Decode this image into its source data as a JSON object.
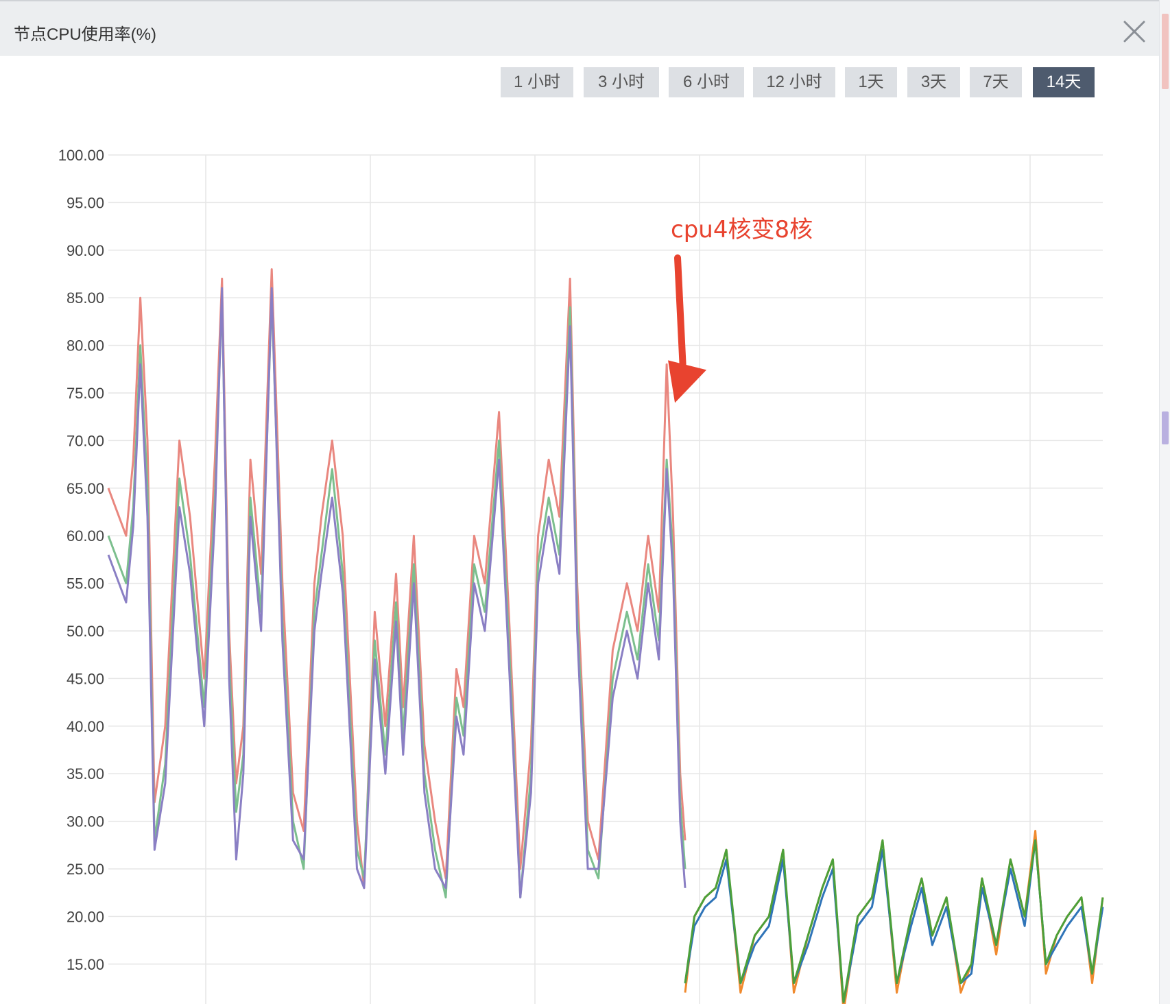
{
  "window": {
    "title": "节点CPU使用率(%)",
    "close_icon": "close-icon"
  },
  "time_ranges": [
    {
      "label": "1 小时",
      "active": false
    },
    {
      "label": "3 小时",
      "active": false
    },
    {
      "label": "6 小时",
      "active": false
    },
    {
      "label": "12 小时",
      "active": false
    },
    {
      "label": "1天",
      "active": false
    },
    {
      "label": "3天",
      "active": false
    },
    {
      "label": "7天",
      "active": false
    },
    {
      "label": "14天",
      "active": true
    }
  ],
  "colors": {
    "active_button": "#4e5b6e",
    "inactive_button": "#dde0e4",
    "annotation": "#e8432f",
    "grid": "#e6e6e6"
  },
  "chart_data": {
    "type": "line",
    "title": "节点CPU使用率(%)",
    "xlabel": "",
    "ylabel": "",
    "ylim": [
      12,
      100
    ],
    "xlim": [
      0,
      14
    ],
    "x_unit": "days",
    "y_ticks": [
      "100.00",
      "95.00",
      "90.00",
      "85.00",
      "80.00",
      "75.00",
      "70.00",
      "65.00",
      "60.00",
      "55.00",
      "50.00",
      "45.00",
      "40.00",
      "35.00",
      "30.00",
      "25.00",
      "20.00",
      "15.00"
    ],
    "grid": true,
    "annotation": {
      "text": "cpu4核变8核",
      "x": 7.86,
      "y": 78
    },
    "series": [
      {
        "color": "#e9877f",
        "x": [
          0.0,
          0.25,
          0.35,
          0.45,
          0.55,
          0.65,
          0.8,
          1.0,
          1.15,
          1.35,
          1.5,
          1.6,
          1.7,
          1.8,
          1.9,
          2.0,
          2.15,
          2.3,
          2.45,
          2.6,
          2.75,
          2.9,
          3.0,
          3.15,
          3.3,
          3.5,
          3.6,
          3.75,
          3.9,
          4.05,
          4.15,
          4.3,
          4.45,
          4.6,
          4.75,
          4.9,
          5.0,
          5.15,
          5.3,
          5.5,
          5.65,
          5.8,
          5.95,
          6.05,
          6.2,
          6.35,
          6.5,
          6.6,
          6.75,
          6.9,
          7.1,
          7.3,
          7.45,
          7.6,
          7.75,
          7.86,
          7.95,
          8.05,
          8.12
        ],
        "y": [
          65,
          60,
          68,
          85,
          70,
          32,
          40,
          70,
          62,
          45,
          68,
          87,
          50,
          34,
          40,
          68,
          56,
          88,
          55,
          33,
          29,
          55,
          62,
          70,
          60,
          30,
          23,
          52,
          40,
          56,
          42,
          60,
          38,
          30,
          24,
          46,
          42,
          60,
          55,
          73,
          50,
          25,
          38,
          60,
          68,
          62,
          87,
          55,
          30,
          26,
          48,
          55,
          50,
          60,
          52,
          78,
          62,
          35,
          28
        ]
      },
      {
        "color": "#7cbf8e",
        "x": [
          0.0,
          0.25,
          0.35,
          0.45,
          0.55,
          0.65,
          0.8,
          1.0,
          1.15,
          1.35,
          1.5,
          1.6,
          1.7,
          1.8,
          1.9,
          2.0,
          2.15,
          2.3,
          2.45,
          2.6,
          2.75,
          2.9,
          3.0,
          3.15,
          3.3,
          3.5,
          3.6,
          3.75,
          3.9,
          4.05,
          4.15,
          4.3,
          4.45,
          4.6,
          4.75,
          4.9,
          5.0,
          5.15,
          5.3,
          5.5,
          5.65,
          5.8,
          5.95,
          6.05,
          6.2,
          6.35,
          6.5,
          6.6,
          6.75,
          6.9,
          7.1,
          7.3,
          7.45,
          7.6,
          7.75,
          7.86,
          7.95,
          8.05,
          8.12
        ],
        "y": [
          60,
          55,
          63,
          80,
          65,
          28,
          36,
          66,
          58,
          42,
          64,
          85,
          47,
          31,
          37,
          64,
          52,
          85,
          51,
          30,
          25,
          52,
          58,
          67,
          56,
          27,
          24,
          49,
          37,
          53,
          39,
          57,
          35,
          27,
          22,
          43,
          39,
          57,
          52,
          70,
          47,
          22,
          35,
          57,
          64,
          58,
          84,
          52,
          27,
          24,
          45,
          52,
          47,
          57,
          49,
          68,
          58,
          32,
          25
        ]
      },
      {
        "color": "#8a7fc4",
        "x": [
          0.0,
          0.25,
          0.35,
          0.45,
          0.55,
          0.65,
          0.8,
          1.0,
          1.15,
          1.35,
          1.5,
          1.6,
          1.7,
          1.8,
          1.9,
          2.0,
          2.15,
          2.3,
          2.45,
          2.6,
          2.75,
          2.9,
          3.0,
          3.15,
          3.3,
          3.5,
          3.6,
          3.75,
          3.9,
          4.05,
          4.15,
          4.3,
          4.45,
          4.6,
          4.75,
          4.9,
          5.0,
          5.15,
          5.3,
          5.5,
          5.65,
          5.8,
          5.95,
          6.05,
          6.2,
          6.35,
          6.5,
          6.6,
          6.75,
          6.9,
          7.1,
          7.3,
          7.45,
          7.6,
          7.75,
          7.86,
          7.95,
          8.05,
          8.12
        ],
        "y": [
          58,
          53,
          61,
          78,
          62,
          27,
          34,
          63,
          56,
          40,
          62,
          86,
          45,
          26,
          35,
          62,
          50,
          86,
          49,
          28,
          26,
          50,
          56,
          64,
          54,
          25,
          23,
          47,
          35,
          51,
          37,
          55,
          33,
          25,
          23,
          41,
          37,
          55,
          50,
          68,
          45,
          22,
          33,
          55,
          62,
          56,
          82,
          50,
          25,
          25,
          43,
          50,
          45,
          55,
          47,
          67,
          56,
          30,
          23
        ]
      },
      {
        "color": "#f08a2e",
        "x": [
          8.12,
          8.25,
          8.4,
          8.55,
          8.7,
          8.9,
          9.1,
          9.3,
          9.5,
          9.65,
          9.85,
          10.05,
          10.2,
          10.35,
          10.55,
          10.75,
          10.9,
          11.1,
          11.3,
          11.45,
          11.6,
          11.8,
          12.0,
          12.15,
          12.3,
          12.5,
          12.7,
          12.9,
          13.05,
          13.2,
          13.35,
          13.5,
          13.7,
          13.85,
          14.0
        ],
        "y": [
          12,
          20,
          22,
          23,
          27,
          12,
          18,
          20,
          27,
          12,
          18,
          23,
          26,
          10,
          20,
          22,
          28,
          12,
          20,
          24,
          18,
          22,
          12,
          15,
          24,
          16,
          26,
          20,
          29,
          14,
          18,
          20,
          22,
          13,
          22
        ]
      },
      {
        "color": "#2f74b8",
        "x": [
          8.12,
          8.25,
          8.4,
          8.55,
          8.7,
          8.9,
          9.1,
          9.3,
          9.5,
          9.65,
          9.85,
          10.05,
          10.2,
          10.35,
          10.55,
          10.75,
          10.9,
          11.1,
          11.3,
          11.45,
          11.6,
          11.8,
          12.0,
          12.15,
          12.3,
          12.5,
          12.7,
          12.9,
          13.05,
          13.2,
          13.35,
          13.5,
          13.7,
          13.85,
          14.0
        ],
        "y": [
          13,
          19,
          21,
          22,
          26,
          13,
          17,
          19,
          26,
          13,
          17,
          22,
          25,
          11,
          19,
          21,
          27,
          13,
          19,
          23,
          17,
          21,
          13,
          14,
          23,
          17,
          25,
          19,
          28,
          15,
          17,
          19,
          21,
          14,
          21
        ]
      },
      {
        "color": "#4ca03a",
        "x": [
          8.12,
          8.25,
          8.4,
          8.55,
          8.7,
          8.9,
          9.1,
          9.3,
          9.5,
          9.65,
          9.85,
          10.05,
          10.2,
          10.35,
          10.55,
          10.75,
          10.9,
          11.1,
          11.3,
          11.45,
          11.6,
          11.8,
          12.0,
          12.15,
          12.3,
          12.5,
          12.7,
          12.9,
          13.05,
          13.2,
          13.35,
          13.5,
          13.7,
          13.85,
          14.0
        ],
        "y": [
          13,
          20,
          22,
          23,
          27,
          13,
          18,
          20,
          27,
          13,
          18,
          23,
          26,
          11,
          20,
          22,
          28,
          13,
          20,
          24,
          18,
          22,
          13,
          15,
          24,
          17,
          26,
          20,
          28,
          15,
          18,
          20,
          22,
          14,
          22
        ]
      }
    ]
  }
}
